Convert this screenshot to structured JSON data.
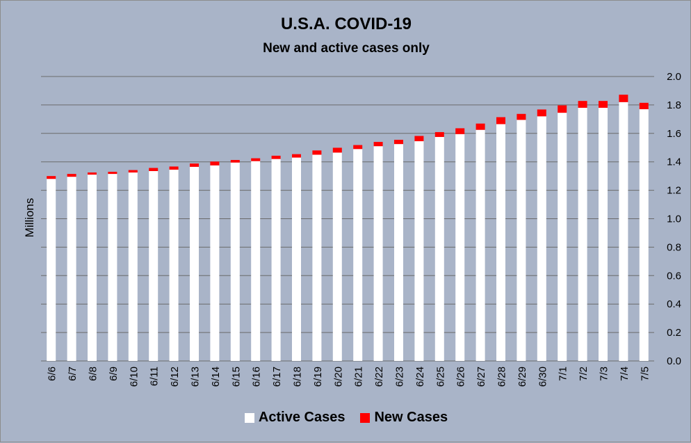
{
  "chart_data": {
    "type": "bar",
    "stacked": true,
    "title": "U.S.A. COVID-19",
    "subtitle": "New and active cases only",
    "xlabel": "",
    "ylabel": "Millions",
    "ylim": [
      0,
      2.0
    ],
    "yticks": [
      "0.0",
      "0.2",
      "0.4",
      "0.6",
      "0.8",
      "1.0",
      "1.2",
      "1.4",
      "1.6",
      "1.8",
      "2.0"
    ],
    "y_axis_side": "right",
    "grid": true,
    "legend_position": "bottom",
    "categories": [
      "6/6",
      "6/7",
      "6/8",
      "6/9",
      "6/10",
      "6/11",
      "6/12",
      "6/13",
      "6/14",
      "6/15",
      "6/16",
      "6/17",
      "6/18",
      "6/19",
      "6/20",
      "6/21",
      "6/22",
      "6/23",
      "6/24",
      "6/25",
      "6/26",
      "6/27",
      "6/28",
      "6/29",
      "6/30",
      "7/1",
      "7/2",
      "7/3",
      "7/4",
      "7/5"
    ],
    "series": [
      {
        "name": "Active Cases",
        "color": "#ffffff",
        "values": [
          1.28,
          1.295,
          1.31,
          1.315,
          1.325,
          1.335,
          1.345,
          1.365,
          1.375,
          1.395,
          1.405,
          1.42,
          1.43,
          1.45,
          1.465,
          1.49,
          1.51,
          1.525,
          1.545,
          1.575,
          1.595,
          1.625,
          1.665,
          1.695,
          1.72,
          1.745,
          1.78,
          1.78,
          1.82,
          1.77
        ]
      },
      {
        "name": "New Cases",
        "color": "#ff0000",
        "values": [
          0.02,
          0.02,
          0.015,
          0.015,
          0.017,
          0.022,
          0.022,
          0.023,
          0.027,
          0.018,
          0.02,
          0.023,
          0.024,
          0.03,
          0.034,
          0.028,
          0.03,
          0.03,
          0.037,
          0.034,
          0.041,
          0.044,
          0.049,
          0.042,
          0.048,
          0.052,
          0.048,
          0.048,
          0.052,
          0.045
        ]
      }
    ]
  }
}
